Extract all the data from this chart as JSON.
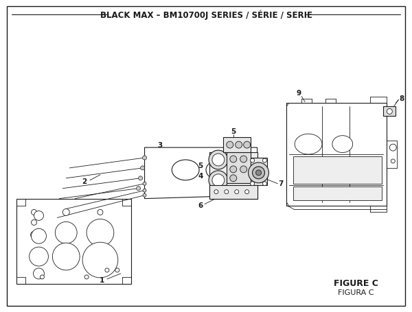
{
  "title": "BLACK MAX – BM10700J SERIES / SÉRIE / SERIE",
  "title_fontsize": 8.5,
  "bg_color": "#ffffff",
  "line_color": "#1a1a1a",
  "fig_width": 6.0,
  "fig_height": 4.55,
  "dpi": 100,
  "figure_label": "FIGURE C",
  "figure_label2": "FIGURA C"
}
